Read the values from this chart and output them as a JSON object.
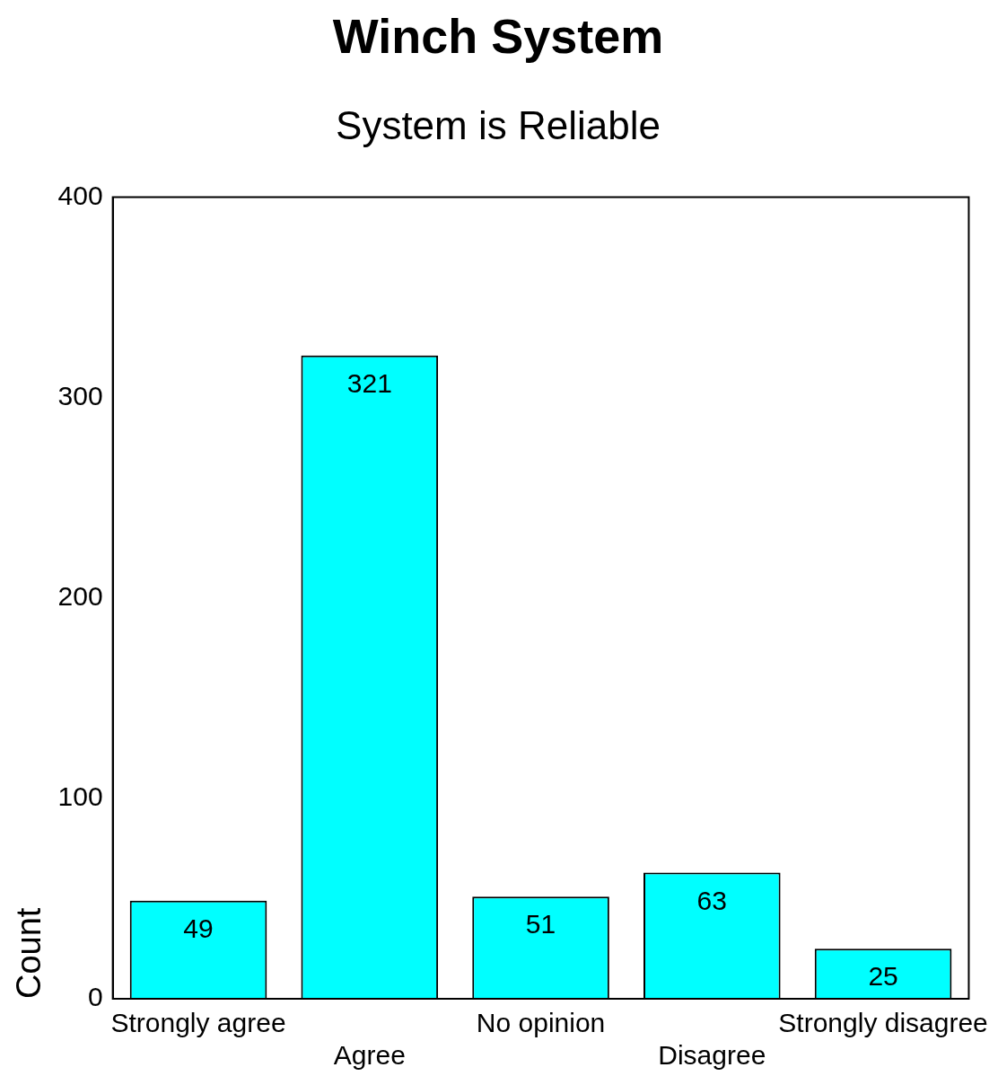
{
  "chart_data": {
    "type": "bar",
    "title": "Winch System",
    "subtitle": "System is Reliable",
    "ylabel": "Count",
    "categories": [
      "Strongly agree",
      "Agree",
      "No opinion",
      "Disagree",
      "Strongly disagree"
    ],
    "values": [
      49,
      321,
      51,
      63,
      25
    ],
    "color": "#00ffff",
    "ylim": [
      0,
      400
    ],
    "yticks": [
      0,
      100,
      200,
      300,
      400
    ],
    "grid": false,
    "legend": false,
    "data_labels": true
  }
}
